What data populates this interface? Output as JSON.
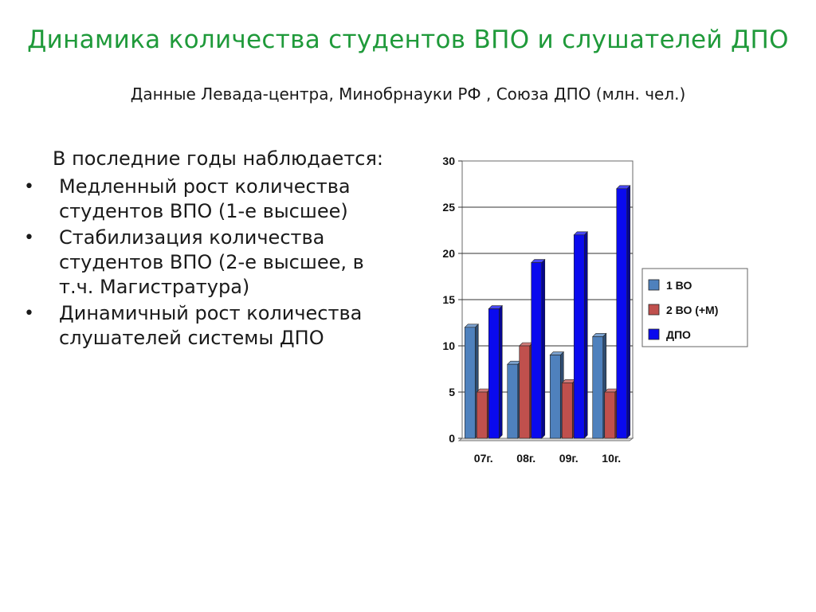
{
  "slide": {
    "title": "Динамика количества студентов ВПО и слушателей ДПО",
    "subtitle": "Данные Левада-центра, Минобрнауки РФ , Союза ДПО (млн. чел.)"
  },
  "text": {
    "intro": "В последние годы наблюдается:",
    "bullets": [
      "Медленный рост количества студентов ВПО (1-е высшее)",
      "Стабилизация количества студентов ВПО (2-е высшее, в т.ч. Магистратура)",
      "Динамичный рост количества слушателей системы ДПО"
    ]
  },
  "chart_data": {
    "type": "bar",
    "categories": [
      "07г.",
      "08г.",
      "09г.",
      "10г."
    ],
    "series": [
      {
        "name": "1 ВО",
        "values": [
          12,
          8,
          9,
          11
        ],
        "color": "#4f81bd"
      },
      {
        "name": "2 ВО (+М)",
        "values": [
          5,
          10,
          6,
          5
        ],
        "color": "#c0504d"
      },
      {
        "name": "ДПО",
        "values": [
          14,
          19,
          22,
          27
        ],
        "color": "#0a0aee"
      }
    ],
    "ylim": [
      0,
      30
    ],
    "yticks": [
      0,
      5,
      10,
      15,
      20,
      25,
      30
    ],
    "grid": true,
    "legend": "right"
  }
}
